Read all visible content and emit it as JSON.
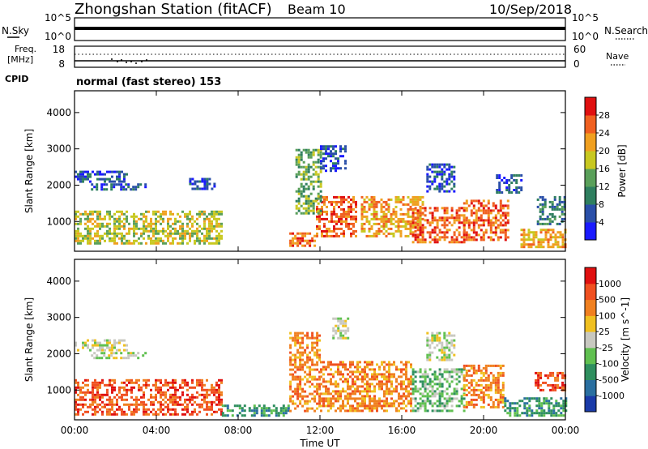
{
  "header": {
    "title": "Zhongshan Station (fitACF)",
    "beam": "Beam 10",
    "date": "10/Sep/2018"
  },
  "status_panels": {
    "nsky_label": "N.Sky",
    "nsky_ticks": [
      "10^5",
      "10^0"
    ],
    "nsearch_label": "N.Search",
    "nsearch_ticks": [
      "10^5",
      "10^0"
    ],
    "freq_label_1": "Freq.",
    "freq_label_2": "[MHz]",
    "freq_ticks": [
      "18",
      "8"
    ],
    "nave_label": "Nave",
    "nave_ticks": [
      "60",
      "0"
    ],
    "cpid_label": "CPID",
    "cpid_text": "normal (fast stereo) 153"
  },
  "chart_data": [
    {
      "type": "heatmap",
      "title": "",
      "xlabel": "Time UT",
      "ylabel": "Slant Range [km]",
      "x_ticks": [
        "00:00",
        "04:00",
        "08:00",
        "12:00",
        "16:00",
        "20:00",
        "00:00"
      ],
      "xlim_hours": [
        0,
        24
      ],
      "ylim": [
        180,
        4600
      ],
      "y_ticks": [
        1000,
        2000,
        3000,
        4000
      ],
      "colorbar": {
        "label": "Power [dB]",
        "ticks": [
          "4",
          "8",
          "12",
          "16",
          "20",
          "24",
          "28"
        ],
        "colors": [
          "#1a1aff",
          "#2a4fa8",
          "#2f7f5f",
          "#5aa05a",
          "#c8c820",
          "#f0a020",
          "#f06020",
          "#e01010"
        ]
      },
      "regions": [
        {
          "t0": 0.0,
          "t1": 7.2,
          "r0": 400,
          "r1": 1300,
          "level": 4
        },
        {
          "t0": 0.0,
          "t1": 2.5,
          "r0": 2100,
          "r1": 2400,
          "level": 1
        },
        {
          "t0": 0.8,
          "t1": 3.5,
          "r0": 1850,
          "r1": 2050,
          "level": 1
        },
        {
          "t0": 5.6,
          "t1": 6.8,
          "r0": 1900,
          "r1": 2200,
          "level": 1
        },
        {
          "t0": 10.5,
          "t1": 11.8,
          "r0": 300,
          "r1": 700,
          "level": 6
        },
        {
          "t0": 11.8,
          "t1": 13.8,
          "r0": 600,
          "r1": 1700,
          "level": 6
        },
        {
          "t0": 10.8,
          "t1": 12.0,
          "r0": 1200,
          "r1": 3000,
          "level": 3
        },
        {
          "t0": 12.0,
          "t1": 13.2,
          "r0": 2400,
          "r1": 3100,
          "level": 1
        },
        {
          "t0": 14.0,
          "t1": 17.0,
          "r0": 600,
          "r1": 1700,
          "level": 5
        },
        {
          "t0": 16.5,
          "t1": 19.0,
          "r0": 400,
          "r1": 1400,
          "level": 6
        },
        {
          "t0": 19.0,
          "t1": 21.2,
          "r0": 500,
          "r1": 1600,
          "level": 6
        },
        {
          "t0": 17.2,
          "t1": 18.6,
          "r0": 1800,
          "r1": 2600,
          "level": 1
        },
        {
          "t0": 20.6,
          "t1": 21.8,
          "r0": 1800,
          "r1": 2300,
          "level": 1
        },
        {
          "t0": 21.8,
          "t1": 24.0,
          "r0": 300,
          "r1": 800,
          "level": 5
        },
        {
          "t0": 22.6,
          "t1": 24.0,
          "r0": 900,
          "r1": 1700,
          "level": 2
        }
      ]
    },
    {
      "type": "heatmap",
      "title": "",
      "xlabel": "Time UT",
      "ylabel": "Slant Range [km]",
      "x_ticks": [
        "00:00",
        "04:00",
        "08:00",
        "12:00",
        "16:00",
        "20:00",
        "00:00"
      ],
      "xlim_hours": [
        0,
        24
      ],
      "ylim": [
        180,
        4600
      ],
      "y_ticks": [
        1000,
        2000,
        3000,
        4000
      ],
      "colorbar": {
        "label": "Velocity [m s^-1]",
        "ticks": [
          "1000",
          "500",
          "100",
          "25",
          "-25",
          "-100",
          "-500",
          "-1000"
        ],
        "colors": [
          "#1a3aa8",
          "#2a6fa0",
          "#2f8f5f",
          "#60c050",
          "#c8c8c0",
          "#f0c020",
          "#f08020",
          "#f05020",
          "#e01010"
        ]
      },
      "regions": [
        {
          "t0": 0.0,
          "t1": 7.2,
          "r0": 350,
          "r1": 1300,
          "level": 7
        },
        {
          "t0": 0.0,
          "t1": 2.5,
          "r0": 2100,
          "r1": 2400,
          "level": 4
        },
        {
          "t0": 0.8,
          "t1": 3.5,
          "r0": 1850,
          "r1": 2050,
          "level": 4
        },
        {
          "t0": 7.2,
          "t1": 10.5,
          "r0": 300,
          "r1": 600,
          "level": 2
        },
        {
          "t0": 10.5,
          "t1": 12.0,
          "r0": 400,
          "r1": 2600,
          "level": 6
        },
        {
          "t0": 12.0,
          "t1": 16.5,
          "r0": 400,
          "r1": 1800,
          "level": 6
        },
        {
          "t0": 12.6,
          "t1": 13.4,
          "r0": 2400,
          "r1": 3000,
          "level": 4
        },
        {
          "t0": 16.5,
          "t1": 19.0,
          "r0": 400,
          "r1": 1600,
          "level": 3
        },
        {
          "t0": 17.2,
          "t1": 18.6,
          "r0": 1800,
          "r1": 2600,
          "level": 4
        },
        {
          "t0": 19.0,
          "t1": 21.0,
          "r0": 500,
          "r1": 1700,
          "level": 6
        },
        {
          "t0": 21.0,
          "t1": 24.0,
          "r0": 300,
          "r1": 800,
          "level": 2
        },
        {
          "t0": 22.5,
          "t1": 24.0,
          "r0": 1000,
          "r1": 1500,
          "level": 7
        }
      ]
    }
  ]
}
